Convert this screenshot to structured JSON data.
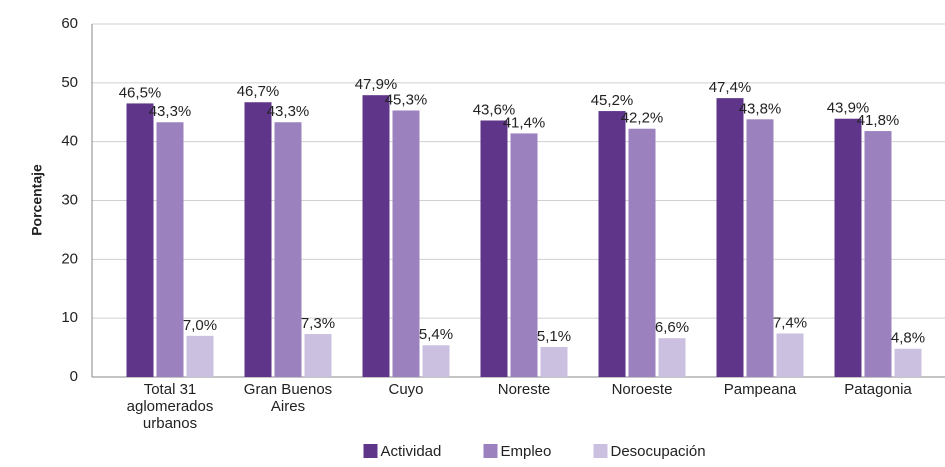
{
  "chart_data": {
    "type": "bar",
    "y_label": "Porcentaje",
    "categories": [
      "Total 31 aglomerados urbanos",
      "Gran Buenos Aires",
      "Cuyo",
      "Noreste",
      "Noroeste",
      "Pampeana",
      "Patagonia"
    ],
    "series": [
      {
        "name": "Actividad",
        "color": "#5e3589",
        "values": [
          46.5,
          46.7,
          47.9,
          43.6,
          45.2,
          47.4,
          43.9
        ],
        "value_labels": [
          "46,5%",
          "46,7%",
          "47,9%",
          "43,6%",
          "45,2%",
          "47,4%",
          "43,9%"
        ]
      },
      {
        "name": "Empleo",
        "color": "#9b82be",
        "values": [
          43.3,
          43.3,
          45.3,
          41.4,
          42.2,
          43.8,
          41.8
        ],
        "value_labels": [
          "43,3%",
          "43,3%",
          "45,3%",
          "41,4%",
          "42,2%",
          "43,8%",
          "41,8%"
        ]
      },
      {
        "name": "Desocupación",
        "color": "#cbc0e0",
        "values": [
          7.0,
          7.3,
          5.4,
          5.1,
          6.6,
          7.4,
          4.8
        ],
        "value_labels": [
          "7,0%",
          "7,3%",
          "5,4%",
          "5,1%",
          "6,6%",
          "7,4%",
          "4,8%"
        ]
      }
    ],
    "ylim": [
      0,
      60
    ],
    "yticks": [
      0,
      10,
      20,
      30,
      40,
      50,
      60
    ],
    "grid": true,
    "legend": "bottom"
  }
}
